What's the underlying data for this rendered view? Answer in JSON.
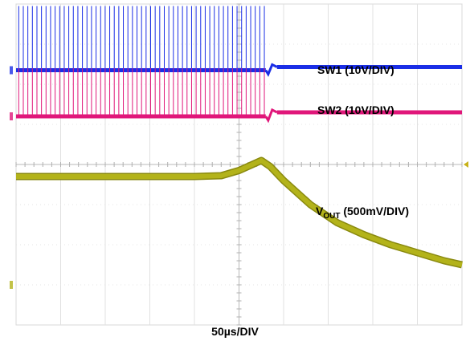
{
  "chart_data": {
    "type": "line",
    "title": "",
    "xlabel": "50µs/DIV",
    "ylabel": "",
    "grid": true,
    "divisions": {
      "x": 10,
      "y": 8
    },
    "x_units": "µs",
    "x_per_div": 50,
    "xlim": [
      0,
      500
    ],
    "series": [
      {
        "name": "SW1 (10V/DIV)",
        "color": "#1a2ee6",
        "scale": "10V/DIV",
        "ground_marker_div": 6.35,
        "baseline_div": 6.35,
        "pulse_amplitude_v": 16,
        "pulse_period_us": 5.1,
        "switching_until_us": 280,
        "step_div_after_stop": 0.08
      },
      {
        "name": "SW2 (10V/DIV)",
        "color": "#e0177a",
        "scale": "10V/DIV",
        "ground_marker_div": 5.2,
        "baseline_div": 5.2,
        "pulse_amplitude_v": 12,
        "pulse_period_us": 5.1,
        "switching_until_us": 280,
        "step_div_after_stop": 0.1
      },
      {
        "name": "VOUT (500mV/DIV)",
        "color": "#b3b31a",
        "scale": "500mV/DIV",
        "ground_marker_div": 1.0,
        "points": [
          [
            0,
            3.7
          ],
          [
            50,
            3.7
          ],
          [
            100,
            3.7
          ],
          [
            200,
            3.7
          ],
          [
            230,
            3.72
          ],
          [
            250,
            3.85
          ],
          [
            265,
            4.0
          ],
          [
            275,
            4.1
          ],
          [
            285,
            3.95
          ],
          [
            300,
            3.6
          ],
          [
            330,
            3.0
          ],
          [
            360,
            2.55
          ],
          [
            390,
            2.25
          ],
          [
            420,
            2.0
          ],
          [
            450,
            1.8
          ],
          [
            480,
            1.6
          ],
          [
            500,
            1.5
          ]
        ]
      }
    ],
    "annotations": {
      "sw1": "SW1 (10V/DIV)",
      "sw2": "SW2 (10V/DIV)",
      "vout_main": "V",
      "vout_sub": "OUT",
      "vout_rest": " (500mV/DIV)"
    }
  }
}
